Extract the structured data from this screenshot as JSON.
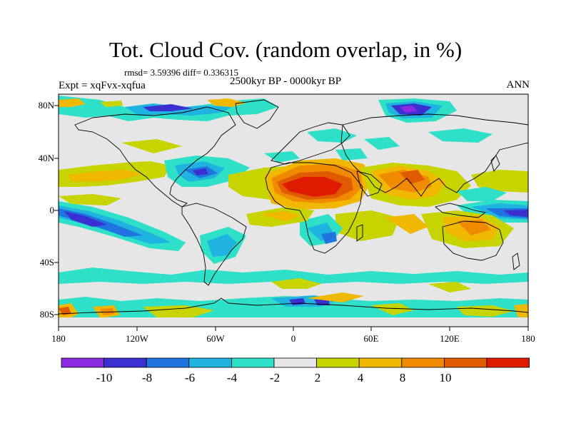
{
  "title": "Tot. Cloud Cov. (random overlap, in %)",
  "stats": "rmsd= 3.59396 diff= 0.336315",
  "left_label": "Expt = xqFvx-xqfua",
  "center_label": "2500kyr BP - 0000kyr BP",
  "right_label": "ANN",
  "lat_labels": [
    "80N",
    "40N",
    "0",
    "40S",
    "80S"
  ],
  "lon_labels": [
    "180",
    "120W",
    "60W",
    "0",
    "60E",
    "120E",
    "180"
  ],
  "colorbar": {
    "labels": [
      "-10",
      "-8",
      "-6",
      "-4",
      "-2",
      "2",
      "4",
      "8",
      "10"
    ],
    "colors": [
      "#8a2be2",
      "#3a2fd0",
      "#1f74e0",
      "#1fb4e0",
      "#2ee0c8",
      "#e6e6e6",
      "#c8d400",
      "#f0b800",
      "#f08a00",
      "#e05a00",
      "#e01a00"
    ]
  },
  "colors": {
    "ocean_land_bg": "#e6e6e6",
    "coastline": "#000000"
  }
}
